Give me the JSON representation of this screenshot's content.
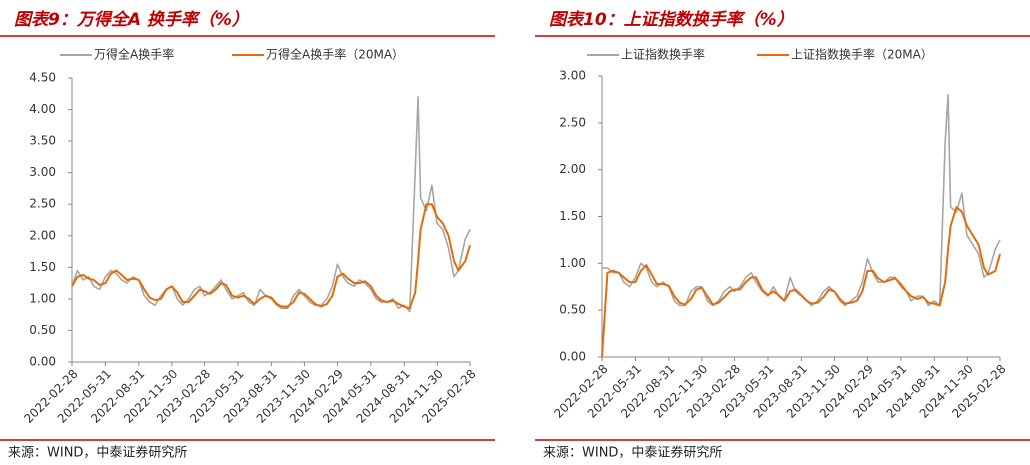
{
  "chart_data": [
    {
      "type": "line",
      "title": "图表9：万得全A 换手率（%）",
      "source": "来源：WIND，中泰证券研究所",
      "legend": "top",
      "x": [
        "2022-02-28",
        "2022-03-15",
        "2022-03-31",
        "2022-04-15",
        "2022-04-29",
        "2022-05-15",
        "2022-05-31",
        "2022-06-15",
        "2022-06-30",
        "2022-07-15",
        "2022-07-29",
        "2022-08-15",
        "2022-08-31",
        "2022-09-15",
        "2022-09-30",
        "2022-10-15",
        "2022-10-31",
        "2022-11-15",
        "2022-11-30",
        "2022-12-15",
        "2022-12-30",
        "2023-01-15",
        "2023-01-31",
        "2023-02-15",
        "2023-02-28",
        "2023-03-15",
        "2023-03-31",
        "2023-04-15",
        "2023-04-28",
        "2023-05-15",
        "2023-05-31",
        "2023-06-15",
        "2023-06-30",
        "2023-07-15",
        "2023-07-31",
        "2023-08-15",
        "2023-08-31",
        "2023-09-15",
        "2023-09-28",
        "2023-10-15",
        "2023-10-31",
        "2023-11-15",
        "2023-11-30",
        "2023-12-15",
        "2023-12-29",
        "2024-01-15",
        "2024-01-31",
        "2024-02-15",
        "2024-02-29",
        "2024-03-15",
        "2024-03-29",
        "2024-04-15",
        "2024-04-30",
        "2024-05-15",
        "2024-05-31",
        "2024-06-15",
        "2024-06-28",
        "2024-07-15",
        "2024-07-31",
        "2024-08-15",
        "2024-08-30",
        "2024-09-15",
        "2024-09-30",
        "2024-10-08",
        "2024-10-15",
        "2024-10-31",
        "2024-11-15",
        "2024-11-29",
        "2024-12-15",
        "2024-12-31",
        "2025-01-15",
        "2025-01-27",
        "2025-02-15",
        "2025-02-28"
      ],
      "series": [
        {
          "name": "万得全A换手率",
          "color": "#a6a6a6",
          "values": [
            1.2,
            1.45,
            1.3,
            1.35,
            1.2,
            1.15,
            1.35,
            1.45,
            1.4,
            1.3,
            1.25,
            1.35,
            1.3,
            1.05,
            0.95,
            0.9,
            1.05,
            1.15,
            1.2,
            1.0,
            0.9,
            1.0,
            1.15,
            1.2,
            1.05,
            1.1,
            1.2,
            1.3,
            1.15,
            1.0,
            1.05,
            1.1,
            0.95,
            0.9,
            1.15,
            1.05,
            1.0,
            0.9,
            0.85,
            0.85,
            1.05,
            1.15,
            1.05,
            0.95,
            0.9,
            0.9,
            1.0,
            1.2,
            1.55,
            1.35,
            1.25,
            1.2,
            1.3,
            1.25,
            1.15,
            1.0,
            0.95,
            0.95,
            1.0,
            0.85,
            0.9,
            0.8,
            3.0,
            4.2,
            2.6,
            2.4,
            2.8,
            2.2,
            2.1,
            1.8,
            1.35,
            1.45,
            1.95,
            2.1
          ]
        },
        {
          "name": "万得全A换手率（20MA）",
          "color": "#e36c09",
          "values": [
            1.2,
            1.35,
            1.38,
            1.32,
            1.3,
            1.22,
            1.25,
            1.4,
            1.45,
            1.38,
            1.3,
            1.32,
            1.3,
            1.15,
            1.02,
            0.98,
            1.0,
            1.15,
            1.2,
            1.1,
            0.95,
            0.95,
            1.05,
            1.15,
            1.12,
            1.08,
            1.15,
            1.25,
            1.22,
            1.05,
            1.02,
            1.05,
            1.0,
            0.92,
            1.0,
            1.05,
            1.02,
            0.92,
            0.88,
            0.88,
            0.95,
            1.1,
            1.08,
            1.0,
            0.92,
            0.88,
            0.92,
            1.05,
            1.35,
            1.4,
            1.32,
            1.25,
            1.25,
            1.28,
            1.2,
            1.05,
            0.98,
            0.95,
            0.97,
            0.92,
            0.88,
            0.85,
            1.1,
            1.6,
            2.1,
            2.5,
            2.5,
            2.3,
            2.2,
            2.0,
            1.6,
            1.45,
            1.6,
            1.85
          ]
        }
      ],
      "xlim": [
        "2022-02-28",
        "2025-02-28"
      ],
      "xticks": [
        "2022-02-28",
        "2022-05-31",
        "2022-08-31",
        "2022-11-30",
        "2023-02-28",
        "2023-05-31",
        "2023-08-31",
        "2023-11-30",
        "2024-02-29",
        "2024-05-31",
        "2024-08-31",
        "2024-11-30",
        "2025-02-28"
      ],
      "ylim": [
        0,
        4.5
      ],
      "yticks": [
        {
          "value": 0,
          "label": "0.00"
        },
        {
          "value": 0.5,
          "label": "0.50"
        },
        {
          "value": 1,
          "label": "1.00"
        },
        {
          "value": 1.5,
          "label": "1.50"
        },
        {
          "value": 2,
          "label": "2.00"
        },
        {
          "value": 2.5,
          "label": "2.50"
        },
        {
          "value": 3,
          "label": "3.00"
        },
        {
          "value": 3.5,
          "label": "3.50"
        },
        {
          "value": 4,
          "label": "4.00"
        },
        {
          "value": 4.5,
          "label": "4.50"
        }
      ]
    },
    {
      "type": "line",
      "title": "图表10：上证指数换手率（%）",
      "source": "来源：WIND，中泰证券研究所",
      "legend": "top",
      "x": [
        "2022-02-28",
        "2022-03-15",
        "2022-03-31",
        "2022-04-15",
        "2022-04-29",
        "2022-05-15",
        "2022-05-31",
        "2022-06-15",
        "2022-06-30",
        "2022-07-15",
        "2022-07-29",
        "2022-08-15",
        "2022-08-31",
        "2022-09-15",
        "2022-09-30",
        "2022-10-15",
        "2022-10-31",
        "2022-11-15",
        "2022-11-30",
        "2022-12-15",
        "2022-12-30",
        "2023-01-15",
        "2023-01-31",
        "2023-02-15",
        "2023-02-28",
        "2023-03-15",
        "2023-03-31",
        "2023-04-15",
        "2023-04-28",
        "2023-05-15",
        "2023-05-31",
        "2023-06-15",
        "2023-06-30",
        "2023-07-15",
        "2023-07-31",
        "2023-08-15",
        "2023-08-31",
        "2023-09-15",
        "2023-09-28",
        "2023-10-15",
        "2023-10-31",
        "2023-11-15",
        "2023-11-30",
        "2023-12-15",
        "2023-12-29",
        "2024-01-15",
        "2024-01-31",
        "2024-02-15",
        "2024-02-29",
        "2024-03-15",
        "2024-03-29",
        "2024-04-15",
        "2024-04-30",
        "2024-05-15",
        "2024-05-31",
        "2024-06-15",
        "2024-06-28",
        "2024-07-15",
        "2024-07-31",
        "2024-08-15",
        "2024-08-30",
        "2024-09-15",
        "2024-09-30",
        "2024-10-08",
        "2024-10-15",
        "2024-10-31",
        "2024-11-15",
        "2024-11-29",
        "2024-12-15",
        "2024-12-31",
        "2025-01-15",
        "2025-01-27",
        "2025-02-15",
        "2025-02-28"
      ],
      "series": [
        {
          "name": "上证指数换手率",
          "color": "#a6a6a6",
          "values": [
            0.95,
            0.95,
            0.9,
            0.9,
            0.8,
            0.75,
            0.85,
            1.0,
            0.95,
            0.8,
            0.75,
            0.8,
            0.75,
            0.6,
            0.55,
            0.55,
            0.7,
            0.75,
            0.75,
            0.6,
            0.55,
            0.6,
            0.7,
            0.75,
            0.7,
            0.75,
            0.85,
            0.9,
            0.8,
            0.7,
            0.65,
            0.75,
            0.65,
            0.6,
            0.85,
            0.7,
            0.65,
            0.6,
            0.55,
            0.6,
            0.7,
            0.75,
            0.7,
            0.6,
            0.55,
            0.6,
            0.65,
            0.8,
            1.05,
            0.9,
            0.8,
            0.8,
            0.85,
            0.85,
            0.75,
            0.7,
            0.6,
            0.65,
            0.65,
            0.55,
            0.6,
            0.55,
            2.3,
            2.8,
            1.6,
            1.55,
            1.75,
            1.3,
            1.2,
            1.1,
            0.85,
            0.9,
            1.15,
            1.25
          ]
        },
        {
          "name": "上证指数换手率（20MA）",
          "color": "#e36c09",
          "values": [
            0.0,
            0.9,
            0.92,
            0.9,
            0.85,
            0.8,
            0.8,
            0.92,
            0.98,
            0.88,
            0.78,
            0.78,
            0.76,
            0.65,
            0.58,
            0.56,
            0.62,
            0.72,
            0.74,
            0.65,
            0.56,
            0.58,
            0.64,
            0.7,
            0.72,
            0.72,
            0.8,
            0.85,
            0.85,
            0.72,
            0.66,
            0.7,
            0.66,
            0.6,
            0.7,
            0.72,
            0.66,
            0.6,
            0.57,
            0.58,
            0.64,
            0.72,
            0.7,
            0.62,
            0.57,
            0.58,
            0.6,
            0.7,
            0.92,
            0.92,
            0.84,
            0.8,
            0.82,
            0.84,
            0.78,
            0.7,
            0.65,
            0.62,
            0.64,
            0.58,
            0.57,
            0.55,
            0.8,
            1.15,
            1.4,
            1.6,
            1.55,
            1.4,
            1.3,
            1.2,
            0.95,
            0.88,
            0.92,
            1.1
          ]
        }
      ],
      "xlim": [
        "2022-02-28",
        "2025-02-28"
      ],
      "xticks": [
        "2022-02-28",
        "2022-05-31",
        "2022-08-31",
        "2022-11-30",
        "2023-02-28",
        "2023-05-31",
        "2023-08-31",
        "2023-11-30",
        "2024-02-29",
        "2024-05-31",
        "2024-08-31",
        "2024-11-30",
        "2025-02-28"
      ],
      "ylim": [
        0,
        3
      ],
      "yticks": [
        {
          "value": 0,
          "label": "0.00"
        },
        {
          "value": 0.5,
          "label": "0.50"
        },
        {
          "value": 1,
          "label": "1.00"
        },
        {
          "value": 1.5,
          "label": "1.50"
        },
        {
          "value": 2,
          "label": "2.00"
        },
        {
          "value": 2.5,
          "label": "2.50"
        },
        {
          "value": 3,
          "label": "3.00"
        }
      ]
    }
  ]
}
